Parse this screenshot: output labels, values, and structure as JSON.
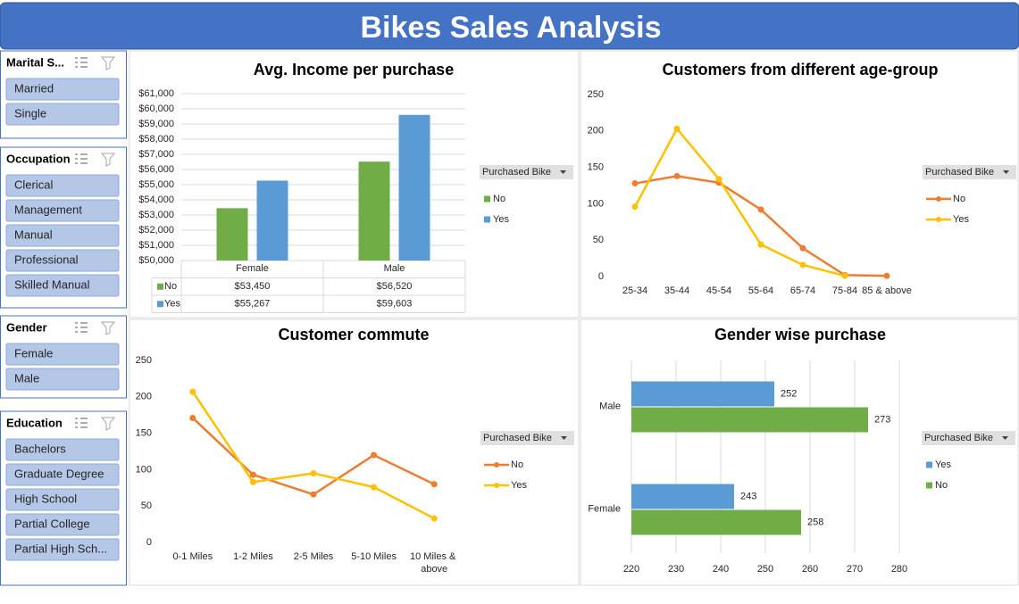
{
  "title": "Bikes Sales Analysis",
  "slicers": [
    {
      "title": "Marital S...",
      "items": [
        "Married",
        "Single"
      ]
    },
    {
      "title": "Occupation",
      "items": [
        "Clerical",
        "Management",
        "Manual",
        "Professional",
        "Skilled Manual"
      ]
    },
    {
      "title": "Gender",
      "items": [
        "Female",
        "Male"
      ]
    },
    {
      "title": "Education",
      "items": [
        "Bachelors",
        "Graduate Degree",
        "High School",
        "Partial College",
        "Partial High Sch..."
      ]
    }
  ],
  "chart_data": [
    {
      "type": "bar",
      "title": "Avg. Income per purchase",
      "legend_title": "Purchased Bike",
      "grid": true,
      "categories": [
        "Female",
        "Male"
      ],
      "series": [
        {
          "name": "No",
          "color": "#70ad47",
          "values": [
            53450,
            56520
          ],
          "value_labels": [
            "$53,450",
            "$56,520"
          ]
        },
        {
          "name": "Yes",
          "color": "#5b9bd5",
          "values": [
            55267,
            59603
          ],
          "value_labels": [
            "$55,267",
            "$59,603"
          ]
        }
      ],
      "ylim": [
        50000,
        61000
      ],
      "yticks": [
        {
          "value": 50000,
          "label": "$50,000"
        },
        {
          "value": 51000,
          "label": "$51,000"
        },
        {
          "value": 52000,
          "label": "$52,000"
        },
        {
          "value": 53000,
          "label": "$53,000"
        },
        {
          "value": 54000,
          "label": "$54,000"
        },
        {
          "value": 55000,
          "label": "$55,000"
        },
        {
          "value": 56000,
          "label": "$56,000"
        },
        {
          "value": 57000,
          "label": "$57,000"
        },
        {
          "value": 58000,
          "label": "$58,000"
        },
        {
          "value": 59000,
          "label": "$59,000"
        },
        {
          "value": 60000,
          "label": "$60,000"
        },
        {
          "value": 61000,
          "label": "$61,000"
        }
      ]
    },
    {
      "type": "line",
      "title": "Customers from different age-group",
      "legend_title": "Purchased Bike",
      "grid": false,
      "categories": [
        "25-34",
        "35-44",
        "45-54",
        "55-64",
        "65-74",
        "75-84",
        "85 & above"
      ],
      "series": [
        {
          "name": "No",
          "color": "#ed7d31",
          "values": [
            128,
            138,
            129,
            92,
            39,
            2,
            1
          ]
        },
        {
          "name": "Yes",
          "color": "#ffc000",
          "values": [
            96,
            203,
            134,
            44,
            16,
            1,
            null
          ]
        }
      ],
      "ylim": [
        0,
        250
      ],
      "yticks": [
        0,
        50,
        100,
        150,
        200,
        250
      ]
    },
    {
      "type": "line",
      "title": "Customer commute",
      "legend_title": "Purchased Bike",
      "grid": false,
      "categories": [
        "0-1 Miles",
        "1-2 Miles",
        "2-5 Miles",
        "5-10 Miles",
        "10 Miles & above"
      ],
      "series": [
        {
          "name": "No",
          "color": "#ed7d31",
          "values": [
            171,
            93,
            66,
            120,
            80
          ]
        },
        {
          "name": "Yes",
          "color": "#ffc000",
          "values": [
            207,
            83,
            95,
            76,
            33
          ]
        }
      ],
      "ylim": [
        0,
        250
      ],
      "yticks": [
        0,
        50,
        100,
        150,
        200,
        250
      ]
    },
    {
      "type": "hbar",
      "title": "Gender wise purchase",
      "legend_title": "Purchased Bike",
      "grid": true,
      "categories": [
        "Female",
        "Male"
      ],
      "series": [
        {
          "name": "Yes",
          "color": "#5b9bd5",
          "values": [
            243,
            252
          ]
        },
        {
          "name": "No",
          "color": "#70ad47",
          "values": [
            258,
            273
          ]
        }
      ],
      "xlim": [
        220,
        280
      ],
      "xticks": [
        220,
        230,
        240,
        250,
        260,
        270,
        280
      ]
    }
  ]
}
